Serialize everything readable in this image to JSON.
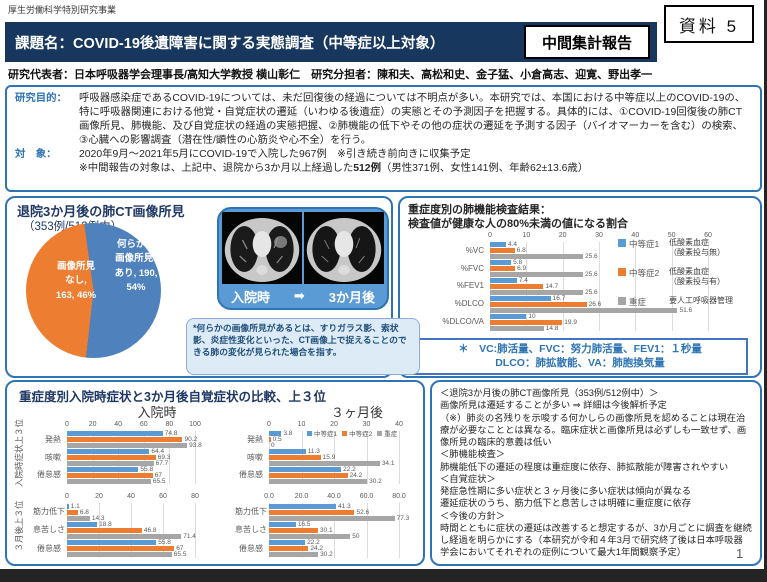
{
  "page": {
    "program": "厚生労働科学特別研究事業",
    "material_label": "資料 5",
    "title": "課題名：COVID-19後遺障害に関する実態調査（中等症以上対象）",
    "report_badge": "中間集計報告",
    "page_number": "1"
  },
  "researchers": {
    "lead_label": "研究代表者：",
    "lead": "日本呼吸器学会理事長/高知大学教授 横山彰仁　",
    "members_label": "研究分担者：",
    "members": "陳和夫、高松和史、金子猛、小倉高志、迎寛、野出孝一"
  },
  "overview": {
    "purpose_label": "研究目的：",
    "purpose": "呼吸器感染症であるCOVID-19については、未だ回復後の経過については不明点が多い。本研究では、本国における中等症以上のCOVID-19の、特に呼吸器関連における他覚・自覚症状の遷延（いわゆる後遺症）の実態とその予測因子を把握する。具体的には、①COVID-19回復後の肺CT画像所見、肺機能、及び自覚症状の経過の実態把握、②肺機能の低下やその他の症状の遷延を予測する因子（バイオマーカーを含む）の検索、③心臓への影響調査（潜在性/顕性の心筋炎や心不全）を行う。",
    "subjects_label": "対　象：",
    "subjects": "2020年9月～2021年5月にCOVID-19で入院した967例　※引き続き前向きに収集予定",
    "note_prefix": "※中間報告の対象は、上記中、退院から3か月以上経過した",
    "note_bold": "512例",
    "note_suffix": "（男性371例、女性141例、年齢62±13.6歳）"
  },
  "ct_section": {
    "title": "退院3か月後の肺CT画像所見",
    "subtitle": "（353例/512例中）",
    "pie_no_l1": "画像所見",
    "pie_no_l2": "なし,",
    "pie_no_l3": "163, 46%",
    "pie_yes_l1": "何らかの",
    "pie_yes_l2": "画像所見*",
    "pie_yes_l3": "あり, 190,",
    "pie_yes_l4": "54%",
    "before_label": "入院時",
    "after_label": "3か月後",
    "note": "*何らかの画像所見があるとは、すりガラス影、索状影、炎症性変化といった、CT画像上で捉えることのできる肺の変化が見られた場合を指す。"
  },
  "lung_section": {
    "title_line1": "重症度別の肺機能検査結果：",
    "title_line2": "検査値が健康な人の80%未満の値になる割合",
    "legend": [
      {
        "name": "中等症1",
        "desc": "低酸素血症\n（酸素投与無）"
      },
      {
        "name": "中等症2",
        "desc": "低酸素血症\n（酸素投与有）"
      },
      {
        "name": "重症",
        "desc": "要人工呼吸器管理"
      }
    ],
    "footnote_line1": "＊　VC:肺活量、FVC：努力肺活量、FEV1：１秒量",
    "footnote_line2": "DLCO：肺拡散能、VA：肺胞換気量"
  },
  "symptom_section": {
    "title": "重症度別入院時症状と3か月後自覚症状の比較、上３位",
    "col_admission": "入院時",
    "col_3months": "３ヶ月後",
    "row_top": "入院時症状上３位",
    "row_bottom": "３月後上３位",
    "legend": [
      "中等症1",
      "中等症2",
      "重症"
    ]
  },
  "summary": {
    "lines": [
      "＜退院3か月後の肺CT画像所見（353例/512例中）＞",
      "画像所見は遷延することが多い ⇒ 詳細は今後解析予定",
      "（※）肺炎の名残りを示唆する何かしらの画像所見を認めることは現在治療が必要なこととは異なる。臨床症状と画像所見は必ずしも一致せず、画像所見の臨床的意義は低い",
      "＜肺機能検査＞",
      "肺機能低下の遷延の程度は重症度に依存、肺拡散能が障害されやすい",
      "＜自覚症状＞",
      "発症急性期に多い症状と３ヶ月後に多い症状は傾向が異なる",
      "遷延症状のうち、筋力低下と息苦しさは明確に重症度に依存",
      "＜今後の方針＞",
      "時間とともに症状の遷延は改善すると想定するが、3か月ごとに調査を継続し経過を明らかにする（本研究が令和４年3月で研究終了後は日本呼吸器学会においてそれぞれの症例について最大1年間観察予定）"
    ]
  },
  "chart_data": [
    {
      "id": "ct-findings-pie",
      "type": "pie",
      "title": "退院3か月後の肺CT画像所見",
      "n_label": "（353例/512例中）",
      "start_deg": -8,
      "slices": [
        {
          "label": "何らかの画像所見*あり",
          "value": 190,
          "pct": 54,
          "color": "#4F81BD"
        },
        {
          "label": "画像所見なし",
          "value": 163,
          "pct": 46,
          "color": "#ED7D31"
        }
      ]
    },
    {
      "id": "lung-function",
      "type": "bar",
      "title": "重症度別の肺機能検査結果：検査値が健康な人の80%未満の値になる割合",
      "categories": [
        "%VC",
        "%FVC",
        "%FEV1",
        "%DLCO",
        "%DLCO/VA"
      ],
      "series": [
        {
          "name": "中等症1",
          "color": "#5B9BD5",
          "values": [
            4.4,
            5.8,
            7.4,
            16.7,
            10
          ]
        },
        {
          "name": "中等症2",
          "color": "#ED7D31",
          "values": [
            6.8,
            6.9,
            14.7,
            26.6,
            19.9
          ]
        },
        {
          "name": "重症",
          "color": "#A6A6A6",
          "values": [
            25.6,
            25.6,
            25.6,
            51.6,
            14.8
          ]
        }
      ],
      "xlim": [
        0,
        60
      ],
      "ticks": [
        0,
        10,
        20,
        30,
        40,
        50,
        60
      ]
    },
    {
      "id": "admission-symptoms-at-admission",
      "type": "bar",
      "period": "入院時",
      "group": "入院時症状上３位",
      "categories": [
        "発熱",
        "咳嗽",
        "倦怠感"
      ],
      "series": [
        {
          "name": "中等症1",
          "color": "#5B9BD5",
          "values": [
            74.8,
            64.4,
            55.8
          ]
        },
        {
          "name": "中等症2",
          "color": "#ED7D31",
          "values": [
            90.2,
            69.3,
            67
          ]
        },
        {
          "name": "重症",
          "color": "#A6A6A6",
          "values": [
            93.8,
            67.7,
            65.5
          ]
        }
      ],
      "xlim": [
        0,
        100
      ],
      "ticks": [
        0,
        20,
        40,
        60,
        80,
        100
      ]
    },
    {
      "id": "admission-symptoms-at-3months",
      "type": "bar",
      "period": "３ヶ月後",
      "group": "入院時症状上３位",
      "categories": [
        "発熱",
        "咳嗽",
        "倦怠感"
      ],
      "series": [
        {
          "name": "中等症1",
          "color": "#5B9BD5",
          "values": [
            3.8,
            11.3,
            22.2
          ]
        },
        {
          "name": "中等症2",
          "color": "#ED7D31",
          "values": [
            0.5,
            15.9,
            24.2
          ]
        },
        {
          "name": "重症",
          "color": "#A6A6A6",
          "values": [
            0,
            34.1,
            30.2
          ]
        }
      ],
      "xlim": [
        0,
        40
      ],
      "ticks": [
        0,
        10,
        20,
        30,
        40
      ]
    },
    {
      "id": "3month-symptoms-at-admission",
      "type": "bar",
      "period": "入院時",
      "group": "３月後上３位",
      "categories": [
        "筋力低下",
        "息苦しさ",
        "倦怠感"
      ],
      "series": [
        {
          "name": "中等症1",
          "color": "#5B9BD5",
          "values": [
            1.1,
            18.8,
            55.8
          ]
        },
        {
          "name": "中等症2",
          "color": "#ED7D31",
          "values": [
            6.8,
            46.8,
            67
          ]
        },
        {
          "name": "重症",
          "color": "#A6A6A6",
          "values": [
            14.3,
            71.4,
            65.5
          ]
        }
      ],
      "xlim": [
        0,
        80
      ],
      "ticks": [
        0,
        20,
        40,
        60,
        80
      ]
    },
    {
      "id": "3month-symptoms-at-3months",
      "type": "bar",
      "period": "３ヶ月後",
      "group": "３月後上３位",
      "categories": [
        "筋力低下",
        "息苦しさ",
        "倦怠感"
      ],
      "series": [
        {
          "name": "中等症1",
          "color": "#5B9BD5",
          "values": [
            41.3,
            16.5,
            22.2
          ]
        },
        {
          "name": "中等症2",
          "color": "#ED7D31",
          "values": [
            52.6,
            30.1,
            24.2
          ]
        },
        {
          "name": "重症",
          "color": "#A6A6A6",
          "values": [
            77.3,
            50,
            30.2
          ]
        }
      ],
      "xlim": [
        0,
        80
      ],
      "ticks": [
        0,
        20,
        40,
        60,
        80
      ],
      "tick_labels": [
        "0.0",
        "20.0",
        "40.0",
        "60.0",
        "80.0"
      ]
    }
  ]
}
